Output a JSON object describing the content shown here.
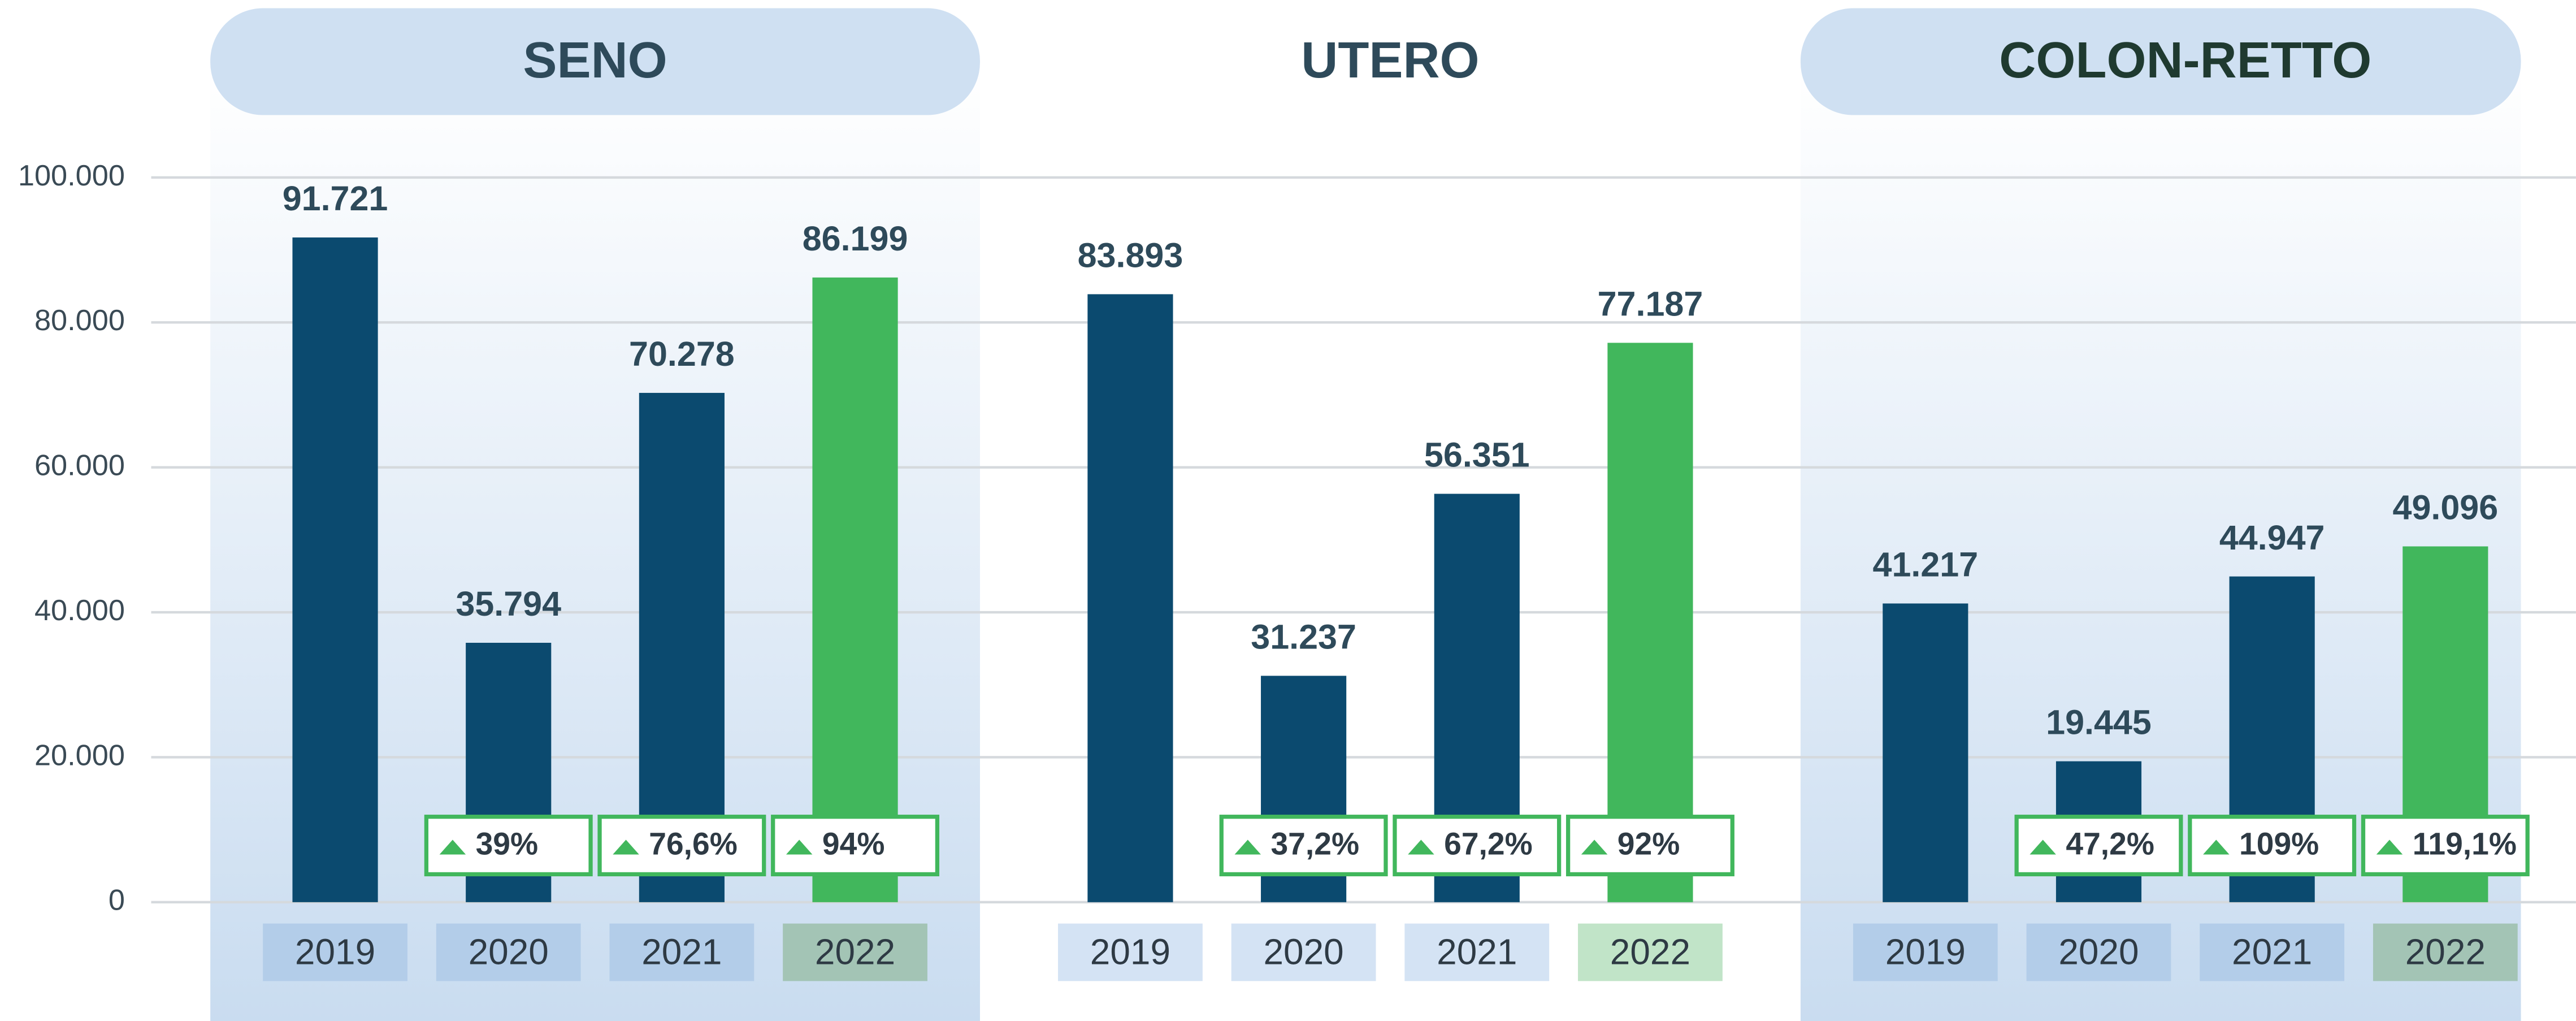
{
  "chart_data": {
    "type": "bar",
    "ylim": [
      0,
      100000
    ],
    "yticks": [
      0,
      {
        "value": 20000,
        "label": "20.000"
      },
      {
        "value": 40000,
        "label": "40.000"
      },
      {
        "value": 60000,
        "label": "60.000"
      },
      {
        "value": 80000,
        "label": "80.000"
      },
      {
        "value": 100000,
        "label": "100.000"
      }
    ],
    "grid": true,
    "groups": [
      {
        "title": "SENO",
        "highlight": true,
        "categories": [
          "2019",
          "2020",
          "2021",
          "2022"
        ],
        "values": [
          91721,
          35794,
          70278,
          86199
        ],
        "value_labels": [
          "91.721",
          "35.794",
          "70.278",
          "86.199"
        ],
        "colors": [
          "#0b4a6f",
          "#0b4a6f",
          "#0b4a6f",
          "#41b75c"
        ],
        "changes": [
          null,
          39,
          76.6,
          94
        ],
        "change_labels": [
          null,
          "39%",
          "76,6%",
          "94%"
        ]
      },
      {
        "title": "UTERO",
        "highlight": false,
        "categories": [
          "2019",
          "2020",
          "2021",
          "2022"
        ],
        "values": [
          83893,
          31237,
          56351,
          77187
        ],
        "value_labels": [
          "83.893",
          "31.237",
          "56.351",
          "77.187"
        ],
        "colors": [
          "#0b4a6f",
          "#0b4a6f",
          "#0b4a6f",
          "#41b75c"
        ],
        "changes": [
          null,
          37.2,
          67.2,
          92
        ],
        "change_labels": [
          null,
          "37,2%",
          "67,2%",
          "92%"
        ]
      },
      {
        "title": "COLON-RETTO",
        "highlight": true,
        "categories": [
          "2019",
          "2020",
          "2021",
          "2022"
        ],
        "values": [
          41217,
          19445,
          44947,
          49096
        ],
        "value_labels": [
          "41.217",
          "19.445",
          "44.947",
          "49.096"
        ],
        "colors": [
          "#0b4a6f",
          "#0b4a6f",
          "#0b4a6f",
          "#41b75c"
        ],
        "changes": [
          null,
          47.2,
          109,
          119.1
        ],
        "change_labels": [
          null,
          "47,2%",
          "109%",
          "119,1%"
        ]
      }
    ]
  }
}
